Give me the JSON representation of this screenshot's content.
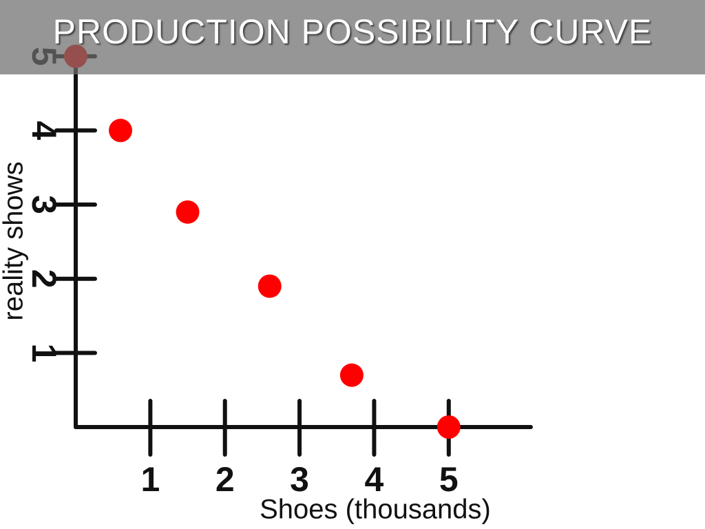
{
  "chart_data": {
    "type": "scatter",
    "title": "PRODUCTION POSSIBILITY CURVE",
    "x_label": "Shoes (thousands)",
    "y_label": "reality shows",
    "x": [
      0,
      0.6,
      1.5,
      2.6,
      3.7,
      5
    ],
    "series": [
      {
        "color": "#ff0000",
        "values": [
          5,
          4,
          2.9,
          1.9,
          0.7,
          0
        ]
      }
    ],
    "xlim": [
      0,
      6.1
    ],
    "ylim": [
      0,
      5.1
    ],
    "xticks": [
      1,
      2,
      3,
      4,
      5
    ],
    "yticks": [
      1,
      2,
      3,
      4,
      5
    ]
  }
}
